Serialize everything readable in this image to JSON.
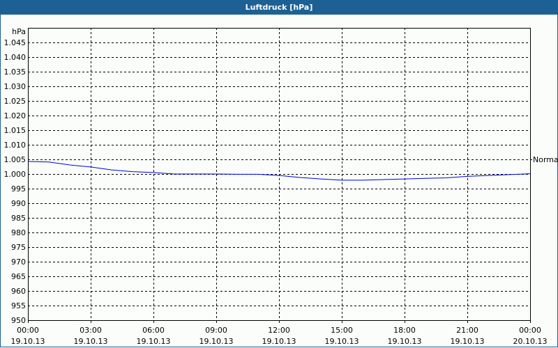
{
  "window": {
    "title": "Luftdruck [hPa]"
  },
  "chart_data": {
    "type": "line",
    "title": "Luftdruck [hPa]",
    "ylabel": "hPa",
    "ylim": [
      950,
      1050
    ],
    "yticks": [
      950,
      955,
      960,
      965,
      970,
      975,
      980,
      985,
      990,
      995,
      1000,
      1005,
      1010,
      1015,
      1020,
      1025,
      1030,
      1035,
      1040,
      1045
    ],
    "ytick_labels": [
      "950",
      "955",
      "960",
      "965",
      "970",
      "975",
      "980",
      "985",
      "990",
      "995",
      "1.000",
      "1.005",
      "1.010",
      "1.015",
      "1.020",
      "1.025",
      "1.030",
      "1.035",
      "1.040",
      "1.045"
    ],
    "xlim_hours": [
      0,
      24
    ],
    "xticks": [
      {
        "time": "00:00",
        "date": "19.10.13"
      },
      {
        "time": "03:00",
        "date": "19.10.13"
      },
      {
        "time": "06:00",
        "date": "19.10.13"
      },
      {
        "time": "09:00",
        "date": "19.10.13"
      },
      {
        "time": "12:00",
        "date": "19.10.13"
      },
      {
        "time": "15:00",
        "date": "19.10.13"
      },
      {
        "time": "18:00",
        "date": "19.10.13"
      },
      {
        "time": "21:00",
        "date": "19.10.13"
      },
      {
        "time": "00:00",
        "date": "20.10.13"
      }
    ],
    "grid": true,
    "series": [
      {
        "name": "Normal",
        "color": "#0000e0",
        "x": [
          "00:00",
          "01:00",
          "02:00",
          "03:00",
          "04:00",
          "05:00",
          "06:00",
          "07:00",
          "08:00",
          "09:00",
          "10:00",
          "11:00",
          "12:00",
          "13:00",
          "14:00",
          "15:00",
          "16:00",
          "17:00",
          "18:00",
          "19:00",
          "20:00",
          "21:00",
          "22:00",
          "23:00",
          "24:00"
        ],
        "values": [
          1004.3,
          1004.1,
          1003.1,
          1002.4,
          1001.4,
          1000.8,
          1000.5,
          1000.0,
          1000.0,
          1000.0,
          999.9,
          999.9,
          999.5,
          998.8,
          998.3,
          997.9,
          997.9,
          998.1,
          998.3,
          998.5,
          998.7,
          999.2,
          999.5,
          999.8,
          1000.1
        ]
      }
    ]
  }
}
